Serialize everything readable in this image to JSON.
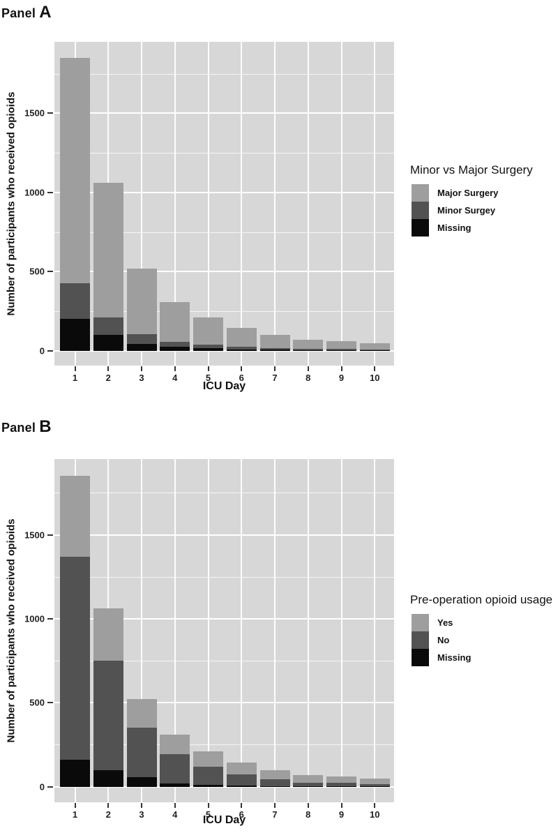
{
  "figure": {
    "panels": [
      {
        "title_prefix": "Panel",
        "title_letter": "A"
      },
      {
        "title_prefix": "Panel",
        "title_letter": "B"
      }
    ]
  },
  "chart_data": [
    {
      "type": "bar",
      "subtype": "stacked",
      "panel": "Panel A",
      "xlabel": "ICU Day",
      "ylabel": "Number of participants who received opioids",
      "categories": [
        "1",
        "2",
        "3",
        "4",
        "5",
        "6",
        "7",
        "8",
        "9",
        "10"
      ],
      "yticks": [
        0,
        500,
        1000,
        1500
      ],
      "yticks_minor": [
        250,
        750,
        1250,
        1750
      ],
      "ylim": [
        -93,
        1951
      ],
      "grid": true,
      "legend_title": "Minor vs Major Surgery",
      "legend_position": "right",
      "panel_background": "#d7d7d7",
      "gridline_color": "#ffffff",
      "stack_order_bottom_to_top": [
        "Missing",
        "Minor Surgey",
        "Major Surgery"
      ],
      "series": [
        {
          "name": "Major Surgery",
          "color": "#9e9e9e",
          "values": [
            1425,
            850,
            415,
            255,
            173,
            118,
            82,
            57,
            49,
            41
          ]
        },
        {
          "name": "Minor Surgey",
          "color": "#525252",
          "values": [
            225,
            110,
            60,
            30,
            19,
            17,
            11,
            8,
            7,
            6
          ]
        },
        {
          "name": "Missing",
          "color": "#0a0a0a",
          "values": [
            200,
            100,
            45,
            25,
            18,
            10,
            7,
            5,
            4,
            3
          ]
        }
      ],
      "totals": [
        1850,
        1060,
        520,
        310,
        210,
        145,
        100,
        70,
        60,
        50
      ]
    },
    {
      "type": "bar",
      "subtype": "stacked",
      "panel": "Panel B",
      "xlabel": "ICU Day",
      "ylabel": "Number of participants who received opioids",
      "categories": [
        "1",
        "2",
        "3",
        "4",
        "5",
        "6",
        "7",
        "8",
        "9",
        "10"
      ],
      "yticks": [
        0,
        500,
        1000,
        1500
      ],
      "yticks_minor": [
        250,
        750,
        1250,
        1750
      ],
      "ylim": [
        -93,
        1951
      ],
      "grid": true,
      "legend_title": "Pre-operation opioid usage",
      "legend_position": "right",
      "panel_background": "#d7d7d7",
      "gridline_color": "#ffffff",
      "stack_order_bottom_to_top": [
        "Missing",
        "No",
        "Yes"
      ],
      "series": [
        {
          "name": "Yes",
          "color": "#9e9e9e",
          "values": [
            480,
            310,
            170,
            115,
            90,
            70,
            55,
            45,
            38,
            36
          ]
        },
        {
          "name": "No",
          "color": "#525252",
          "values": [
            1210,
            650,
            295,
            175,
            110,
            70,
            41,
            22,
            19,
            12
          ]
        },
        {
          "name": "Missing",
          "color": "#0a0a0a",
          "values": [
            160,
            100,
            55,
            20,
            10,
            5,
            4,
            3,
            3,
            2
          ]
        }
      ],
      "totals": [
        1850,
        1060,
        520,
        310,
        210,
        145,
        100,
        70,
        60,
        50
      ]
    }
  ]
}
